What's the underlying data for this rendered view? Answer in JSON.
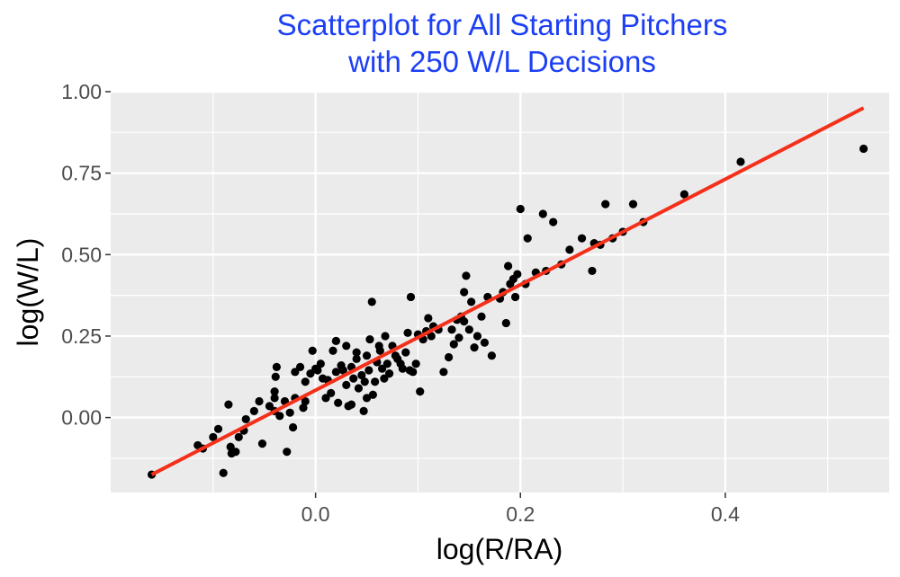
{
  "chart_data": {
    "type": "scatter",
    "title_lines": [
      "Scatterplot for All Starting Pitchers",
      "with 250 W/L Decisions"
    ],
    "xlabel": "log(R/RA)",
    "ylabel": "log(W/L)",
    "xlim": [
      -0.2,
      0.56
    ],
    "ylim": [
      -0.23,
      1.0
    ],
    "x_ticks": [
      0.0,
      0.2,
      0.4
    ],
    "x_tick_labels": [
      "0.0",
      "0.2",
      "0.4"
    ],
    "y_ticks": [
      0.0,
      0.25,
      0.5,
      0.75,
      1.0
    ],
    "y_tick_labels": [
      "0.00",
      "0.25",
      "0.50",
      "0.75",
      "1.00"
    ],
    "grid": true,
    "legend": "none",
    "colors": {
      "title": "#1c3ff5",
      "panel": "#ebebeb",
      "grid": "#ffffff",
      "points": "#000000",
      "fit_line": "#f4301b"
    },
    "points": [
      [
        -0.16,
        -0.175
      ],
      [
        -0.115,
        -0.085
      ],
      [
        -0.11,
        -0.095
      ],
      [
        -0.1,
        -0.06
      ],
      [
        -0.095,
        -0.035
      ],
      [
        -0.09,
        -0.17
      ],
      [
        -0.085,
        0.04
      ],
      [
        -0.083,
        -0.09
      ],
      [
        -0.082,
        -0.11
      ],
      [
        -0.078,
        -0.105
      ],
      [
        -0.075,
        -0.06
      ],
      [
        -0.07,
        -0.04
      ],
      [
        -0.068,
        -0.005
      ],
      [
        -0.06,
        0.02
      ],
      [
        -0.055,
        0.05
      ],
      [
        -0.052,
        -0.08
      ],
      [
        -0.045,
        0.035
      ],
      [
        -0.04,
        0.02
      ],
      [
        -0.04,
        0.06
      ],
      [
        -0.04,
        0.08
      ],
      [
        -0.039,
        0.125
      ],
      [
        -0.038,
        0.155
      ],
      [
        -0.035,
        0.005
      ],
      [
        -0.03,
        0.05
      ],
      [
        -0.028,
        -0.105
      ],
      [
        -0.025,
        0.015
      ],
      [
        -0.022,
        -0.03
      ],
      [
        -0.02,
        0.06
      ],
      [
        -0.02,
        0.14
      ],
      [
        -0.015,
        0.155
      ],
      [
        -0.012,
        0.03
      ],
      [
        -0.01,
        0.05
      ],
      [
        -0.01,
        0.11
      ],
      [
        -0.005,
        0.135
      ],
      [
        -0.003,
        0.205
      ],
      [
        0.0,
        0.15
      ],
      [
        0.002,
        0.145
      ],
      [
        0.005,
        0.165
      ],
      [
        0.007,
        0.12
      ],
      [
        0.01,
        0.06
      ],
      [
        0.012,
        0.115
      ],
      [
        0.015,
        0.075
      ],
      [
        0.017,
        0.205
      ],
      [
        0.02,
        0.14
      ],
      [
        0.02,
        0.235
      ],
      [
        0.022,
        0.045
      ],
      [
        0.025,
        0.16
      ],
      [
        0.027,
        0.145
      ],
      [
        0.03,
        0.1
      ],
      [
        0.03,
        0.22
      ],
      [
        0.032,
        0.035
      ],
      [
        0.035,
        0.04
      ],
      [
        0.035,
        0.155
      ],
      [
        0.037,
        0.12
      ],
      [
        0.04,
        0.18
      ],
      [
        0.04,
        0.2
      ],
      [
        0.042,
        0.09
      ],
      [
        0.045,
        0.13
      ],
      [
        0.047,
        0.02
      ],
      [
        0.048,
        0.11
      ],
      [
        0.05,
        0.06
      ],
      [
        0.05,
        0.19
      ],
      [
        0.052,
        0.145
      ],
      [
        0.053,
        0.24
      ],
      [
        0.055,
        0.355
      ],
      [
        0.056,
        0.07
      ],
      [
        0.058,
        0.11
      ],
      [
        0.06,
        0.17
      ],
      [
        0.062,
        0.22
      ],
      [
        0.063,
        0.205
      ],
      [
        0.065,
        0.15
      ],
      [
        0.067,
        0.12
      ],
      [
        0.068,
        0.25
      ],
      [
        0.07,
        0.165
      ],
      [
        0.072,
        0.135
      ],
      [
        0.075,
        0.22
      ],
      [
        0.078,
        0.19
      ],
      [
        0.08,
        0.18
      ],
      [
        0.083,
        0.165
      ],
      [
        0.085,
        0.15
      ],
      [
        0.088,
        0.2
      ],
      [
        0.09,
        0.26
      ],
      [
        0.092,
        0.145
      ],
      [
        0.093,
        0.37
      ],
      [
        0.095,
        0.14
      ],
      [
        0.098,
        0.165
      ],
      [
        0.1,
        0.255
      ],
      [
        0.102,
        0.08
      ],
      [
        0.105,
        0.24
      ],
      [
        0.108,
        0.265
      ],
      [
        0.11,
        0.305
      ],
      [
        0.113,
        0.25
      ],
      [
        0.115,
        0.28
      ],
      [
        0.12,
        0.27
      ],
      [
        0.125,
        0.14
      ],
      [
        0.13,
        0.185
      ],
      [
        0.133,
        0.27
      ],
      [
        0.135,
        0.225
      ],
      [
        0.138,
        0.3
      ],
      [
        0.14,
        0.245
      ],
      [
        0.142,
        0.31
      ],
      [
        0.145,
        0.385
      ],
      [
        0.145,
        0.295
      ],
      [
        0.147,
        0.435
      ],
      [
        0.15,
        0.27
      ],
      [
        0.152,
        0.355
      ],
      [
        0.155,
        0.215
      ],
      [
        0.158,
        0.25
      ],
      [
        0.162,
        0.31
      ],
      [
        0.165,
        0.23
      ],
      [
        0.168,
        0.37
      ],
      [
        0.172,
        0.19
      ],
      [
        0.18,
        0.365
      ],
      [
        0.183,
        0.385
      ],
      [
        0.186,
        0.29
      ],
      [
        0.188,
        0.465
      ],
      [
        0.19,
        0.41
      ],
      [
        0.193,
        0.425
      ],
      [
        0.195,
        0.37
      ],
      [
        0.197,
        0.44
      ],
      [
        0.2,
        0.64
      ],
      [
        0.205,
        0.41
      ],
      [
        0.207,
        0.55
      ],
      [
        0.215,
        0.445
      ],
      [
        0.222,
        0.625
      ],
      [
        0.225,
        0.45
      ],
      [
        0.232,
        0.6
      ],
      [
        0.24,
        0.47
      ],
      [
        0.248,
        0.515
      ],
      [
        0.26,
        0.55
      ],
      [
        0.27,
        0.45
      ],
      [
        0.272,
        0.535
      ],
      [
        0.278,
        0.53
      ],
      [
        0.283,
        0.655
      ],
      [
        0.29,
        0.55
      ],
      [
        0.3,
        0.57
      ],
      [
        0.31,
        0.655
      ],
      [
        0.32,
        0.6
      ],
      [
        0.36,
        0.685
      ],
      [
        0.415,
        0.785
      ],
      [
        0.535,
        0.825
      ]
    ],
    "fit_line": {
      "x": [
        -0.16,
        0.535
      ],
      "y": [
        -0.175,
        0.95
      ]
    }
  }
}
